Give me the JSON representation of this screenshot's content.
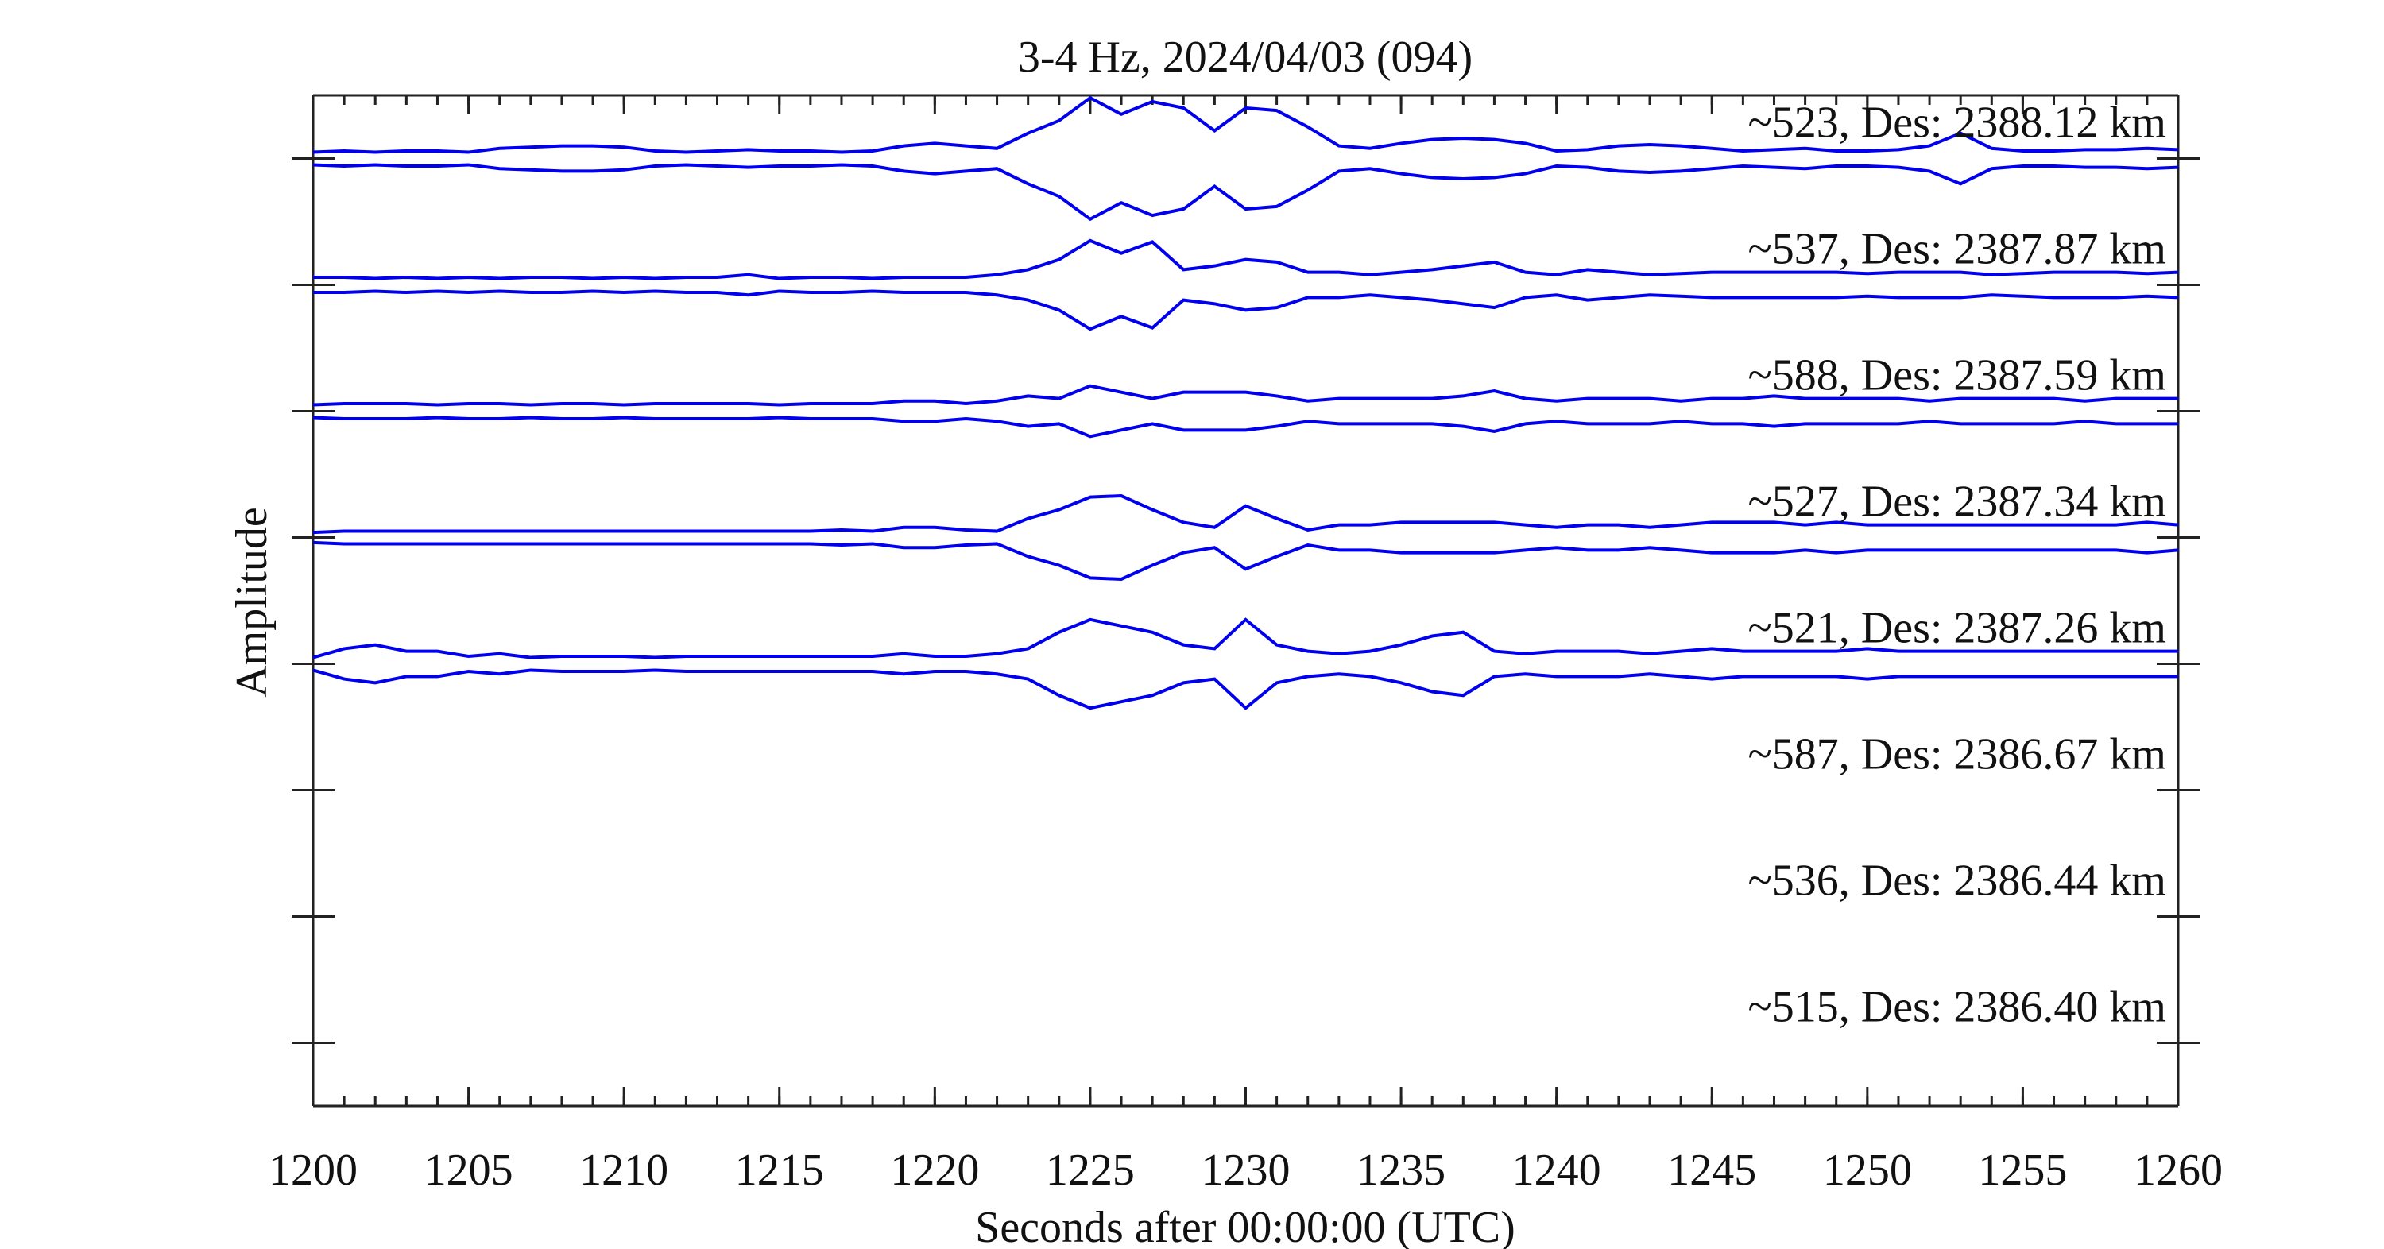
{
  "chart_data": {
    "type": "envelope",
    "title": "3-4 Hz, 2024/04/03 (094)",
    "x_label": "Seconds after 00:00:00 (UTC)",
    "y_label": "Amplitude",
    "x": [
      1200,
      1201,
      1202,
      1203,
      1204,
      1205,
      1206,
      1207,
      1208,
      1209,
      1210,
      1211,
      1212,
      1213,
      1214,
      1215,
      1216,
      1217,
      1218,
      1219,
      1220,
      1221,
      1222,
      1223,
      1224,
      1225,
      1226,
      1227,
      1228,
      1229,
      1230,
      1231,
      1232,
      1233,
      1234,
      1235,
      1236,
      1237,
      1238,
      1239,
      1240,
      1241,
      1242,
      1243,
      1244,
      1245,
      1246,
      1247,
      1248,
      1249,
      1250,
      1251,
      1252,
      1253,
      1254,
      1255,
      1256,
      1257,
      1258,
      1259,
      1260
    ],
    "xlim": [
      1200,
      1260
    ],
    "xticks": [
      1200,
      1205,
      1210,
      1215,
      1220,
      1225,
      1230,
      1235,
      1240,
      1245,
      1250,
      1255,
      1260
    ],
    "xminor_step": 1,
    "ylim": [
      0.5,
      8.5
    ],
    "y_inverted": true,
    "yticks": [
      1,
      2,
      3,
      4,
      5,
      6,
      7,
      8
    ],
    "color": "#0000ee",
    "series": [
      {
        "name": "~523, Des: 2388.12 km",
        "offset": 1,
        "values": [
          0.05,
          0.06,
          0.05,
          0.06,
          0.06,
          0.05,
          0.08,
          0.09,
          0.1,
          0.1,
          0.09,
          0.06,
          0.05,
          0.06,
          0.07,
          0.06,
          0.06,
          0.05,
          0.06,
          0.1,
          0.12,
          0.1,
          0.08,
          0.2,
          0.3,
          0.48,
          0.35,
          0.45,
          0.4,
          0.22,
          0.4,
          0.38,
          0.25,
          0.1,
          0.08,
          0.12,
          0.15,
          0.16,
          0.15,
          0.12,
          0.06,
          0.07,
          0.1,
          0.11,
          0.1,
          0.08,
          0.06,
          0.07,
          0.08,
          0.06,
          0.06,
          0.07,
          0.1,
          0.2,
          0.08,
          0.06,
          0.06,
          0.07,
          0.07,
          0.08,
          0.07
        ]
      },
      {
        "name": "~537, Des: 2387.87 km",
        "offset": 2,
        "values": [
          0.06,
          0.06,
          0.05,
          0.06,
          0.05,
          0.06,
          0.05,
          0.06,
          0.06,
          0.05,
          0.06,
          0.05,
          0.06,
          0.06,
          0.08,
          0.05,
          0.06,
          0.06,
          0.05,
          0.06,
          0.06,
          0.06,
          0.08,
          0.12,
          0.2,
          0.35,
          0.25,
          0.34,
          0.12,
          0.15,
          0.2,
          0.18,
          0.1,
          0.1,
          0.08,
          0.1,
          0.12,
          0.15,
          0.18,
          0.1,
          0.08,
          0.12,
          0.1,
          0.08,
          0.09,
          0.1,
          0.1,
          0.1,
          0.1,
          0.1,
          0.09,
          0.1,
          0.1,
          0.1,
          0.08,
          0.09,
          0.1,
          0.1,
          0.1,
          0.09,
          0.1
        ]
      },
      {
        "name": "~588, Des: 2387.59 km",
        "offset": 3,
        "values": [
          0.05,
          0.06,
          0.06,
          0.06,
          0.05,
          0.06,
          0.06,
          0.05,
          0.06,
          0.06,
          0.05,
          0.06,
          0.06,
          0.06,
          0.06,
          0.05,
          0.06,
          0.06,
          0.06,
          0.08,
          0.08,
          0.06,
          0.08,
          0.12,
          0.1,
          0.2,
          0.15,
          0.1,
          0.15,
          0.15,
          0.15,
          0.12,
          0.08,
          0.1,
          0.1,
          0.1,
          0.1,
          0.12,
          0.16,
          0.1,
          0.08,
          0.1,
          0.1,
          0.1,
          0.08,
          0.1,
          0.1,
          0.12,
          0.1,
          0.1,
          0.1,
          0.1,
          0.08,
          0.1,
          0.1,
          0.1,
          0.1,
          0.08,
          0.1,
          0.1,
          0.1
        ]
      },
      {
        "name": "~527, Des: 2387.34 km",
        "offset": 4,
        "values": [
          0.04,
          0.05,
          0.05,
          0.05,
          0.05,
          0.05,
          0.05,
          0.05,
          0.05,
          0.05,
          0.05,
          0.05,
          0.05,
          0.05,
          0.05,
          0.05,
          0.05,
          0.06,
          0.05,
          0.08,
          0.08,
          0.06,
          0.05,
          0.15,
          0.22,
          0.32,
          0.33,
          0.22,
          0.12,
          0.08,
          0.25,
          0.15,
          0.06,
          0.1,
          0.1,
          0.12,
          0.12,
          0.12,
          0.12,
          0.1,
          0.08,
          0.1,
          0.1,
          0.08,
          0.1,
          0.12,
          0.12,
          0.12,
          0.1,
          0.12,
          0.1,
          0.1,
          0.1,
          0.1,
          0.1,
          0.1,
          0.1,
          0.1,
          0.1,
          0.12,
          0.1
        ]
      },
      {
        "name": "~521, Des: 2387.26 km",
        "offset": 5,
        "values": [
          0.05,
          0.12,
          0.15,
          0.1,
          0.1,
          0.06,
          0.08,
          0.05,
          0.06,
          0.06,
          0.06,
          0.05,
          0.06,
          0.06,
          0.06,
          0.06,
          0.06,
          0.06,
          0.06,
          0.08,
          0.06,
          0.06,
          0.08,
          0.12,
          0.25,
          0.35,
          0.3,
          0.25,
          0.15,
          0.12,
          0.35,
          0.15,
          0.1,
          0.08,
          0.1,
          0.15,
          0.22,
          0.25,
          0.1,
          0.08,
          0.1,
          0.1,
          0.1,
          0.08,
          0.1,
          0.12,
          0.1,
          0.1,
          0.1,
          0.1,
          0.12,
          0.1,
          0.1,
          0.1,
          0.1,
          0.1,
          0.1,
          0.1,
          0.1,
          0.1,
          0.1
        ]
      },
      {
        "name": "~587, Des: 2386.67 km",
        "offset": 6
      },
      {
        "name": "~536, Des: 2386.44 km",
        "offset": 7
      },
      {
        "name": "~515, Des: 2386.40 km",
        "offset": 8
      }
    ]
  }
}
